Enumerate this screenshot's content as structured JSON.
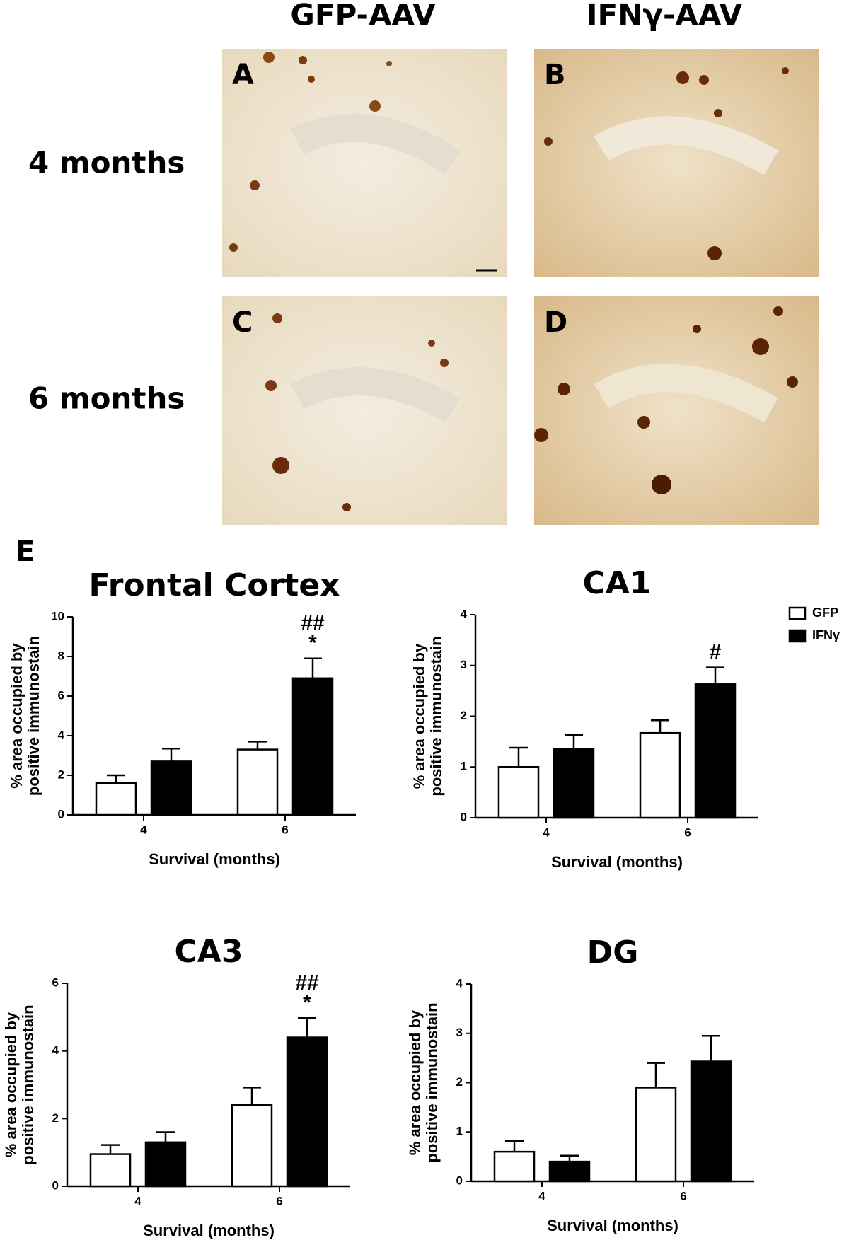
{
  "header": {
    "columns": [
      "GFP-AAV",
      "IFNγ-AAV"
    ],
    "rows": [
      "4 months",
      "6 months"
    ]
  },
  "panels": [
    "A",
    "B",
    "C",
    "D",
    "E"
  ],
  "chart_data": [
    {
      "type": "bar",
      "title": "Frontal Cortex",
      "xlabel": "Survival (months)",
      "ylabel": [
        "% area occupied by",
        "positive immunostain"
      ],
      "categories": [
        "4",
        "6"
      ],
      "ylim": [
        0,
        10
      ],
      "yticks": [
        0,
        2,
        4,
        6,
        8,
        10
      ],
      "series": [
        {
          "color": "#ffffff",
          "values": [
            1.6,
            3.3
          ],
          "errors": [
            0.4,
            0.4
          ]
        },
        {
          "color": "#000000",
          "values": [
            2.7,
            6.9
          ],
          "errors": [
            0.65,
            1.0
          ],
          "annotations": [
            null,
            [
              "##",
              "*"
            ]
          ]
        }
      ]
    },
    {
      "type": "bar",
      "title": "CA1",
      "xlabel": "Survival (months)",
      "ylabel": [
        "% area occupied by",
        "positive immunostain"
      ],
      "categories": [
        "4",
        "6"
      ],
      "ylim": [
        0,
        4
      ],
      "yticks": [
        0,
        1,
        2,
        3,
        4
      ],
      "legend": "top-right",
      "series": [
        {
          "name": "GFP",
          "color": "#ffffff",
          "values": [
            1.0,
            1.67
          ],
          "errors": [
            0.38,
            0.25
          ]
        },
        {
          "name": "IFNγ",
          "color": "#000000",
          "values": [
            1.35,
            2.63
          ],
          "errors": [
            0.28,
            0.33
          ],
          "annotations": [
            null,
            [
              "#"
            ]
          ]
        }
      ]
    },
    {
      "type": "bar",
      "title": "CA3",
      "xlabel": "Survival (months)",
      "ylabel": [
        "% area occupied by",
        "positive immunostain"
      ],
      "categories": [
        "4",
        "6"
      ],
      "ylim": [
        0,
        6
      ],
      "yticks": [
        0,
        2,
        4,
        6
      ],
      "series": [
        {
          "color": "#ffffff",
          "values": [
            0.95,
            2.4
          ],
          "errors": [
            0.27,
            0.52
          ]
        },
        {
          "color": "#000000",
          "values": [
            1.3,
            4.4
          ],
          "errors": [
            0.3,
            0.57
          ],
          "annotations": [
            null,
            [
              "##",
              "*"
            ]
          ]
        }
      ]
    },
    {
      "type": "bar",
      "title": "DG",
      "xlabel": "Survival (months)",
      "ylabel": [
        "% area occupied by",
        "positive immunostain"
      ],
      "categories": [
        "4",
        "6"
      ],
      "ylim": [
        0,
        4
      ],
      "yticks": [
        0,
        1,
        2,
        3,
        4
      ],
      "series": [
        {
          "color": "#ffffff",
          "values": [
            0.6,
            1.9
          ],
          "errors": [
            0.22,
            0.5
          ]
        },
        {
          "color": "#000000",
          "values": [
            0.4,
            2.43
          ],
          "errors": [
            0.12,
            0.52
          ]
        }
      ]
    }
  ]
}
